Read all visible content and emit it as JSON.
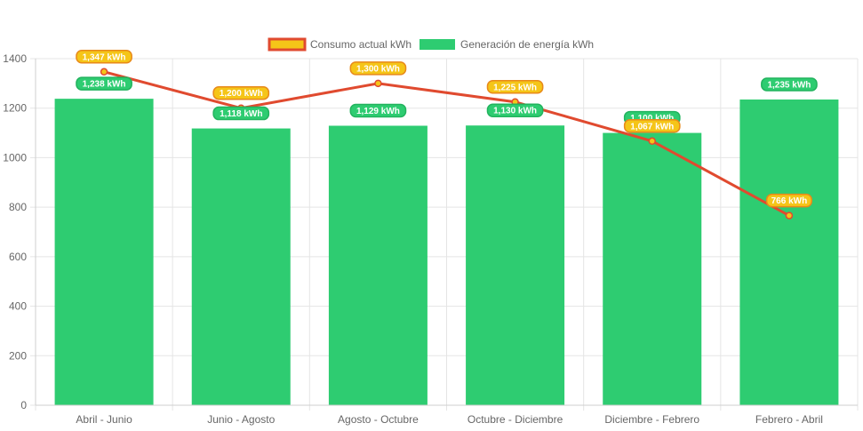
{
  "chart_data": {
    "type": "bar",
    "categories": [
      "Abril - Junio",
      "Junio - Agosto",
      "Agosto - Octubre",
      "Octubre - Diciembre",
      "Diciembre - Febrero",
      "Febrero - Abril"
    ],
    "ylim": [
      0,
      1400
    ],
    "yticks": [
      0,
      200,
      400,
      600,
      800,
      1000,
      1200,
      1400
    ],
    "grid": true,
    "legend_position": "top",
    "series": [
      {
        "name": "Consumo actual kWh",
        "type": "line",
        "values": [
          1347,
          1200,
          1300,
          1225,
          1067,
          766
        ],
        "labels": [
          "1,347 kWh",
          "1,200 kWh",
          "1,300 kWh",
          "1,225 kWh",
          "1,067 kWh",
          "766 kWh"
        ],
        "line_color": "#e04a2f",
        "fill_color": "#f5c518"
      },
      {
        "name": "Generación de energía kWh",
        "type": "bar",
        "values": [
          1238,
          1118,
          1129,
          1130,
          1100,
          1235
        ],
        "labels": [
          "1,238 kWh",
          "1,118 kWh",
          "1,129 kWh",
          "1,130 kWh",
          "1,100 kWh",
          "1,235 kWh"
        ],
        "color": "#2ecc71"
      }
    ]
  }
}
